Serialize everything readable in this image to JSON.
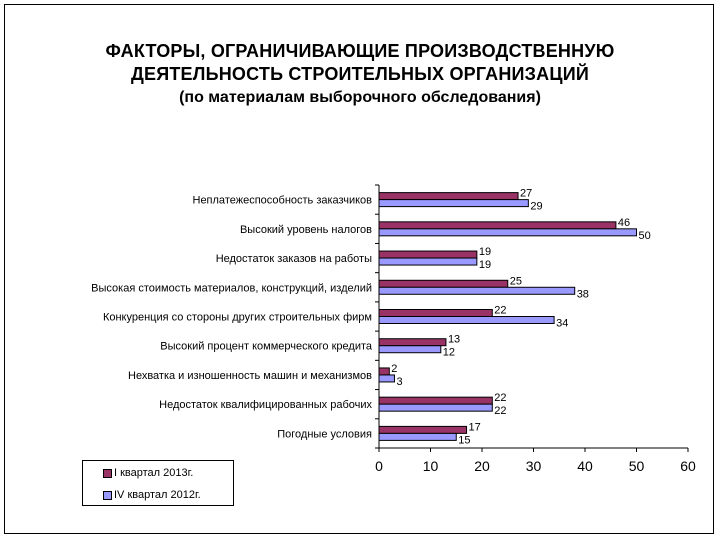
{
  "chart_data": {
    "type": "bar",
    "orientation": "horizontal",
    "title_lines": [
      "ФАКТОРЫ, ОГРАНИЧИВАЮЩИЕ ПРОИЗВОДСТВЕННУЮ",
      "ДЕЯТЕЛЬНОСТЬ СТРОИТЕЛЬНЫХ ОРГАНИЗАЦИЙ",
      "(по материалам выборочного обследования)"
    ],
    "categories": [
      "Неплатежеспособность заказчиков",
      "Высокий уровень налогов",
      "Недостаток заказов на работы",
      "Высокая стоимость материалов, конструкций, изделий",
      "Конкуренция со стороны других строительных фирм",
      "Высокий процент коммерческого кредита",
      "Нехватка и изношенность машин и механизмов",
      "Недостаток квалифицированных рабочих",
      "Погодные условия"
    ],
    "series": [
      {
        "name": "I квартал 2013г.",
        "color": "#993366",
        "values": [
          27,
          46,
          19,
          25,
          22,
          13,
          2,
          22,
          17
        ]
      },
      {
        "name": "IV квартал 2012г.",
        "color": "#9999ff",
        "values": [
          29,
          50,
          19,
          38,
          34,
          12,
          3,
          22,
          15
        ]
      }
    ],
    "xlim": [
      0,
      60
    ],
    "xticks": [
      0,
      10,
      20,
      30,
      40,
      50,
      60
    ],
    "grid": false,
    "legend_position": "bottom-left"
  }
}
